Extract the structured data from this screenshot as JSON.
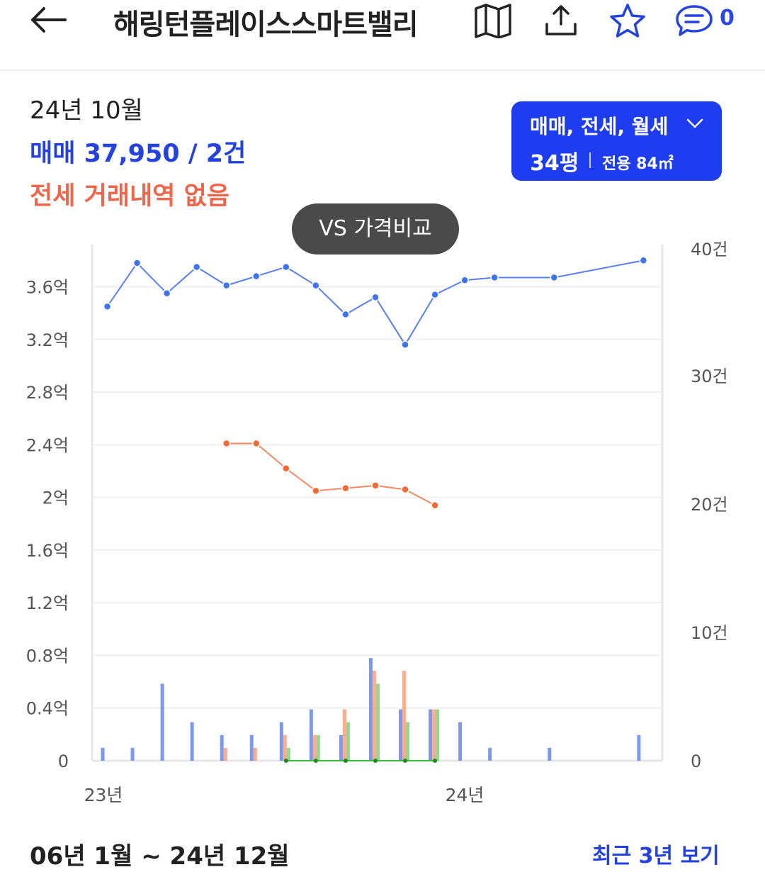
{
  "header": {
    "title": "해링턴플레이스스마트밸리",
    "comment_count": "0",
    "icons": [
      "back-arrow-icon",
      "map-icon",
      "share-icon",
      "star-icon",
      "comment-icon"
    ]
  },
  "summary": {
    "period": "24년 10월",
    "sale": "매매 37,950 / 2건",
    "jeonse": "전세 거래내역 없음"
  },
  "filter": {
    "types": "매매, 전세, 월세",
    "pyeong": "34평",
    "area": "전용 84㎡"
  },
  "vs_button": "VS 가격비교",
  "colors": {
    "sale": "#5a7ff0",
    "jeonse": "#f58a62",
    "monthly": "#5ccc5c",
    "accent": "#1f3df0"
  },
  "chart_data": {
    "type": "line",
    "y_left_ticks": [
      "3.6억",
      "3.2억",
      "2.8억",
      "2.4억",
      "2억",
      "1.6억",
      "1.2억",
      "0.8억",
      "0.4억",
      "0"
    ],
    "y_left_range": [
      0,
      3.9
    ],
    "y_right_ticks": [
      "40건",
      "30건",
      "20건",
      "10건",
      "0"
    ],
    "y_right_range": [
      0,
      40
    ],
    "x_ticks": [
      "23년",
      "24년"
    ],
    "price_series": [
      {
        "name": "매매",
        "unit": "억",
        "points": [
          [
            1,
            3.45
          ],
          [
            2,
            3.78
          ],
          [
            3,
            3.55
          ],
          [
            4,
            3.75
          ],
          [
            5,
            3.61
          ],
          [
            6,
            3.68
          ],
          [
            7,
            3.75
          ],
          [
            8,
            3.61
          ],
          [
            9,
            3.39
          ],
          [
            10,
            3.52
          ],
          [
            11,
            3.16
          ],
          [
            12,
            3.54
          ],
          [
            13,
            3.65
          ],
          [
            14,
            3.67
          ],
          [
            16,
            3.67
          ],
          [
            19,
            3.8
          ]
        ]
      },
      {
        "name": "전세",
        "unit": "억",
        "points": [
          [
            5,
            2.41
          ],
          [
            6,
            2.41
          ],
          [
            7,
            2.22
          ],
          [
            8,
            2.05
          ],
          [
            9,
            2.07
          ],
          [
            10,
            2.09
          ],
          [
            11,
            2.06
          ],
          [
            12,
            1.94
          ]
        ]
      },
      {
        "name": "월세",
        "unit": "억",
        "points": [
          [
            7,
            0
          ],
          [
            8,
            0
          ],
          [
            9,
            0
          ],
          [
            10,
            0
          ],
          [
            11,
            0
          ],
          [
            12,
            0
          ]
        ]
      }
    ],
    "volume_series": [
      {
        "name": "매매",
        "unit": "건",
        "points": [
          [
            1,
            1
          ],
          [
            2,
            1
          ],
          [
            3,
            6
          ],
          [
            4,
            3
          ],
          [
            5,
            2
          ],
          [
            6,
            2
          ],
          [
            7,
            3
          ],
          [
            8,
            4
          ],
          [
            9,
            2
          ],
          [
            10,
            8
          ],
          [
            11,
            4
          ],
          [
            12,
            4
          ],
          [
            13,
            3
          ],
          [
            14,
            1
          ],
          [
            16,
            1
          ],
          [
            19,
            2
          ]
        ]
      },
      {
        "name": "전세",
        "unit": "건",
        "points": [
          [
            5,
            1
          ],
          [
            6,
            1
          ],
          [
            7,
            2
          ],
          [
            8,
            2
          ],
          [
            9,
            4
          ],
          [
            10,
            7
          ],
          [
            11,
            7
          ],
          [
            12,
            4
          ]
        ]
      },
      {
        "name": "월세",
        "unit": "건",
        "points": [
          [
            7,
            1
          ],
          [
            8,
            2
          ],
          [
            9,
            3
          ],
          [
            10,
            6
          ],
          [
            11,
            3
          ],
          [
            12,
            4
          ]
        ]
      }
    ]
  },
  "footer": {
    "range": "06년 1월 ~ 24년 12월",
    "recent_link": "최근 3년 보기"
  }
}
